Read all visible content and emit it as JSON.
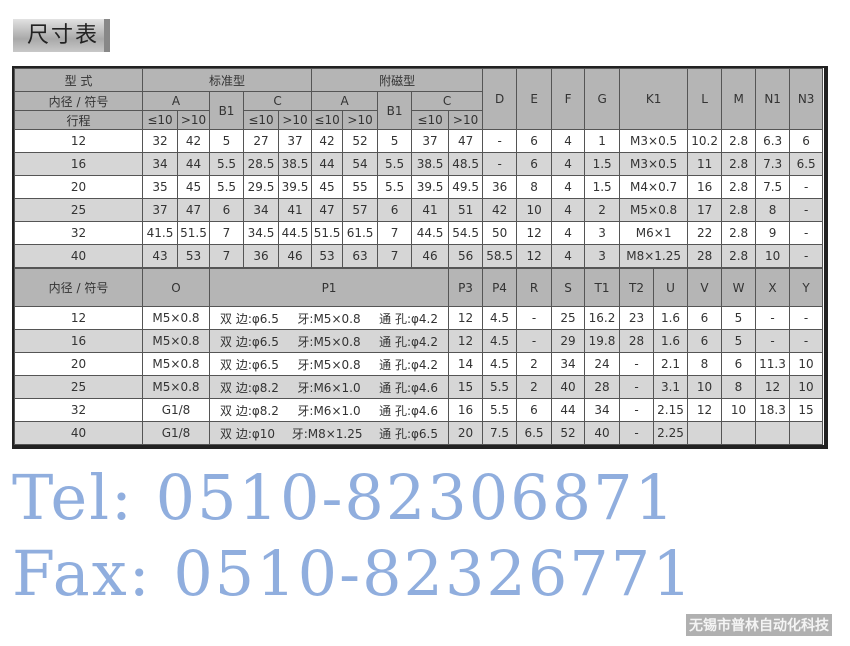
{
  "title": "尺寸表",
  "table1": {
    "h_model": "型 式",
    "h_std": "标准型",
    "h_mag": "附磁型",
    "h_bore": "内径 / 符号",
    "h_stroke": "行程",
    "h_A": "A",
    "h_B1": "B1",
    "h_C": "C",
    "le10": "≤10",
    "gt10": ">10",
    "cols": [
      "D",
      "E",
      "F",
      "G",
      "K1",
      "L",
      "M",
      "N1",
      "N3"
    ],
    "rows": [
      [
        "12",
        "32",
        "42",
        "5",
        "27",
        "37",
        "42",
        "52",
        "5",
        "37",
        "47",
        "-",
        "6",
        "4",
        "1",
        "M3×0.5",
        "10.2",
        "2.8",
        "6.3",
        "6"
      ],
      [
        "16",
        "34",
        "44",
        "5.5",
        "28.5",
        "38.5",
        "44",
        "54",
        "5.5",
        "38.5",
        "48.5",
        "-",
        "6",
        "4",
        "1.5",
        "M3×0.5",
        "11",
        "2.8",
        "7.3",
        "6.5"
      ],
      [
        "20",
        "35",
        "45",
        "5.5",
        "29.5",
        "39.5",
        "45",
        "55",
        "5.5",
        "39.5",
        "49.5",
        "36",
        "8",
        "4",
        "1.5",
        "M4×0.7",
        "16",
        "2.8",
        "7.5",
        "-"
      ],
      [
        "25",
        "37",
        "47",
        "6",
        "34",
        "41",
        "47",
        "57",
        "6",
        "41",
        "51",
        "42",
        "10",
        "4",
        "2",
        "M5×0.8",
        "17",
        "2.8",
        "8",
        "-"
      ],
      [
        "32",
        "41.5",
        "51.5",
        "7",
        "34.5",
        "44.5",
        "51.5",
        "61.5",
        "7",
        "44.5",
        "54.5",
        "50",
        "12",
        "4",
        "3",
        "M6×1",
        "22",
        "2.8",
        "9",
        "-"
      ],
      [
        "40",
        "43",
        "53",
        "7",
        "36",
        "46",
        "53",
        "63",
        "7",
        "46",
        "56",
        "58.5",
        "12",
        "4",
        "3",
        "M8×1.25",
        "28",
        "2.8",
        "10",
        "-"
      ]
    ]
  },
  "table2": {
    "h_bore": "内径 / 符号",
    "h_O": "O",
    "h_P1": "P1",
    "cols": [
      "P3",
      "P4",
      "R",
      "S",
      "T1",
      "T2",
      "U",
      "V",
      "W",
      "X",
      "Y"
    ],
    "rows": [
      {
        "bore": "12",
        "O": "M5×0.8",
        "p1a": "双 边:φ6.5",
        "p1b": "牙:M5×0.8",
        "p1c": "通 孔:φ4.2",
        "vals": [
          "12",
          "4.5",
          "-",
          "25",
          "16.2",
          "23",
          "1.6",
          "6",
          "5",
          "-",
          "-"
        ]
      },
      {
        "bore": "16",
        "O": "M5×0.8",
        "p1a": "双 边:φ6.5",
        "p1b": "牙:M5×0.8",
        "p1c": "通 孔:φ4.2",
        "vals": [
          "12",
          "4.5",
          "-",
          "29",
          "19.8",
          "28",
          "1.6",
          "6",
          "5",
          "-",
          "-"
        ]
      },
      {
        "bore": "20",
        "O": "M5×0.8",
        "p1a": "双 边:φ6.5",
        "p1b": "牙:M5×0.8",
        "p1c": "通 孔:φ4.2",
        "vals": [
          "14",
          "4.5",
          "2",
          "34",
          "24",
          "-",
          "2.1",
          "8",
          "6",
          "11.3",
          "10"
        ]
      },
      {
        "bore": "25",
        "O": "M5×0.8",
        "p1a": "双 边:φ8.2",
        "p1b": "牙:M6×1.0",
        "p1c": "通 孔:φ4.6",
        "vals": [
          "15",
          "5.5",
          "2",
          "40",
          "28",
          "-",
          "3.1",
          "10",
          "8",
          "12",
          "10"
        ]
      },
      {
        "bore": "32",
        "O": "G1/8",
        "p1a": "双 边:φ8.2",
        "p1b": "牙:M6×1.0",
        "p1c": "通 孔:φ4.6",
        "vals": [
          "16",
          "5.5",
          "6",
          "44",
          "34",
          "-",
          "2.15",
          "12",
          "10",
          "18.3",
          "15"
        ]
      },
      {
        "bore": "40",
        "O": "G1/8",
        "p1a": "双 边:φ10",
        "p1b": "牙:M8×1.25",
        "p1c": "通 孔:φ6.5",
        "vals": [
          "20",
          "7.5",
          "6.5",
          "52",
          "40",
          "-",
          "2.25",
          "",
          "",
          "",
          ""
        ]
      }
    ]
  },
  "watermark_tel": "Tel: 0510-82306871",
  "watermark_fax": "Fax: 0510-82326771",
  "company_watermark": "无锡市普林自动化科技"
}
